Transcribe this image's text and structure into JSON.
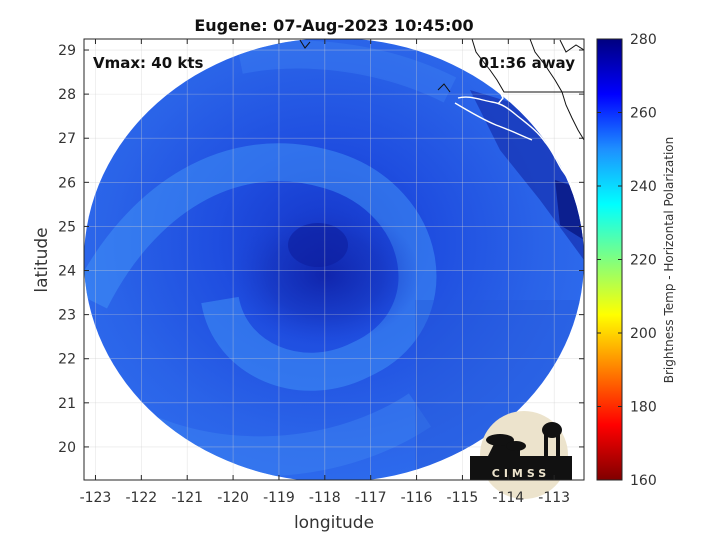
{
  "title": "Eugene: 07-Aug-2023 10:45:00",
  "vmax_label": "Vmax: 40 kts",
  "time_away_label": "01:36 away",
  "logo_text": "CIMSS",
  "chart_data": {
    "type": "heatmap",
    "xlabel": "longitude",
    "ylabel": "latitude",
    "xlim": [
      -123.25,
      -112.35
    ],
    "ylim": [
      19.25,
      29.25
    ],
    "xticks": [
      -123,
      -122,
      -121,
      -120,
      -119,
      -118,
      -117,
      -116,
      -115,
      -114,
      -113
    ],
    "yticks": [
      20,
      21,
      22,
      23,
      24,
      25,
      26,
      27,
      28,
      29
    ],
    "grid": true,
    "storm_center": {
      "lon": -118.2,
      "lat": 24.7
    },
    "colorbar": {
      "label": "Brightness Temp - Horizontal Polarization",
      "min": 160,
      "max": 280,
      "ticks": [
        160,
        180,
        200,
        220,
        240,
        260,
        280
      ]
    }
  }
}
